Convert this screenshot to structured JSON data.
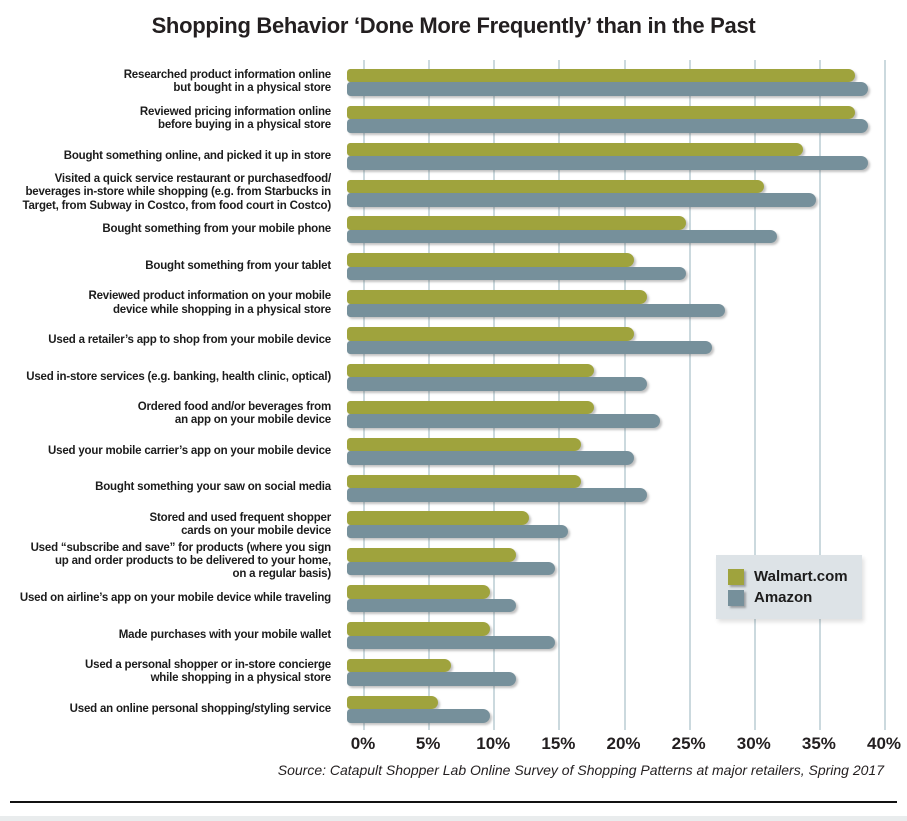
{
  "chart_data": {
    "type": "bar",
    "orientation": "horizontal",
    "title": "Shopping Behavior ‘Done More Frequently’ than in the Past",
    "categories": [
      "Researched product information online\nbut bought in a physical store",
      "Reviewed pricing information online\nbefore buying in a physical store",
      "Bought something online, and picked it up in store",
      "Visited a quick service restaurant or purchasedfood/\nbeverages in-store while shopping (e.g. from Starbucks in\nTarget, from Subway in Costco, from food court in Costco)",
      "Bought something from your mobile phone",
      "Bought something from your tablet",
      "Reviewed product information on your mobile\ndevice while shopping in a physical store",
      "Used a retailer’s app to shop from your mobile device",
      "Used in-store services (e.g. banking, health clinic, optical)",
      "Ordered food and/or beverages from\nan app on your mobile device",
      "Used your mobile carrier’s app on your mobile device",
      "Bought something your saw on social media",
      "Stored and used frequent shopper\ncards on your mobile device",
      "Used “subscribe and save” for products (where you sign\nup and order products to be delivered to your home,\non a regular basis)",
      "Used on airline’s app on your mobile device while traveling",
      "Made purchases with your mobile wallet",
      "Used a personal shopper or in-store concierge\nwhile shopping in a physical store",
      "Used an online personal shopping/styling service"
    ],
    "series": [
      {
        "name": "Walmart.com",
        "color": "#9fa33d",
        "values": [
          39,
          39,
          35,
          32,
          26,
          22,
          23,
          22,
          19,
          19,
          18,
          18,
          14,
          13,
          11,
          11,
          8,
          7
        ]
      },
      {
        "name": "Amazon",
        "color": "#76909b",
        "values": [
          40,
          40,
          40,
          36,
          33,
          26,
          29,
          28,
          23,
          24,
          22,
          23,
          17,
          16,
          13,
          16,
          13,
          11
        ]
      }
    ],
    "xlim": [
      0,
      40
    ],
    "x_ticks": [
      "0%",
      "5%",
      "10%",
      "15%",
      "20%",
      "25%",
      "30%",
      "35%",
      "40%"
    ],
    "grid": true,
    "legend_position": "right-middle",
    "source_note": "Source: Catapult Shopper Lab Online Survey of Shopping Patterns at major retailers, Spring 2017"
  },
  "colors": {
    "walmart_green": "#9fa33d",
    "amazon_gray": "#76909b",
    "gridline": "#cbd9de",
    "legend_background": "#dde3e7",
    "text": "#231f20"
  }
}
